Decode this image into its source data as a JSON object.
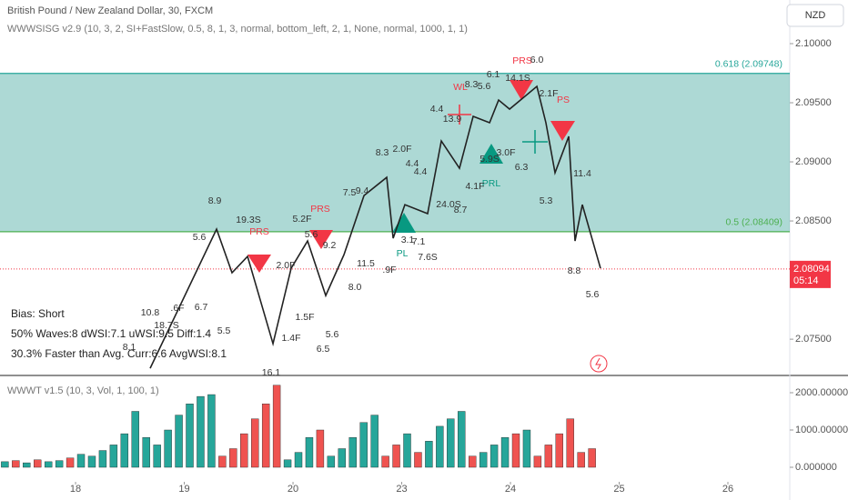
{
  "header": {
    "title": "British Pound / New Zealand Dollar, 30, FXCM",
    "indicator": "WWWSISG v2.9 (10, 3, 2, SI+FastSlow, 0.5, 8, 1, 3, normal, bottom_left, 2, 1, None, normal, 1000, 1, 1)",
    "currency": "NZD"
  },
  "chart_data": [
    {
      "type": "line",
      "xlim": [
        -0.695,
        6.569
      ],
      "ylim": [
        2.07201,
        2.10369
      ],
      "xticks": [
        {
          "value": 0,
          "label": "18"
        },
        {
          "value": 1,
          "label": "19"
        },
        {
          "value": 2,
          "label": "20"
        },
        {
          "value": 3,
          "label": "23"
        },
        {
          "value": 4,
          "label": "24"
        },
        {
          "value": 5,
          "label": "25"
        },
        {
          "value": 6,
          "label": "26"
        }
      ],
      "yticks": [
        {
          "value": 2.1,
          "label": "2.10000"
        },
        {
          "value": 2.095,
          "label": "2.09500"
        },
        {
          "value": 2.09,
          "label": "2.09000"
        },
        {
          "value": 2.085,
          "label": "2.08500"
        },
        {
          "value": 2.075,
          "label": "2.07500"
        }
      ],
      "series": [
        {
          "color": "#222222",
          "x": [
            0.686,
            1.297,
            1.439,
            1.582,
            1.816,
            1.983,
            2.134,
            2.301,
            2.469,
            2.653,
            2.862,
            2.921,
            3.029,
            3.238,
            3.364,
            3.531,
            3.657,
            3.808,
            3.891,
            3.992,
            4.243,
            4.326,
            4.41,
            4.536,
            4.594,
            4.661,
            4.828
          ],
          "values": [
            2.07254,
            2.08431,
            2.08062,
            2.082,
            2.07462,
            2.081,
            2.08331,
            2.07869,
            2.08215,
            2.08715,
            2.08869,
            2.08354,
            2.08638,
            2.08562,
            2.09177,
            2.08946,
            2.09385,
            2.09331,
            2.09523,
            2.09446,
            2.09638,
            2.09331,
            2.08908,
            2.09215,
            2.08331,
            2.08638,
            2.081
          ]
        }
      ],
      "fib": [
        {
          "value": 2.09748,
          "label": "0.618 (2.09748)",
          "color": "#26a69a"
        },
        {
          "value": 2.08409,
          "label": "0.5 (2.08409)",
          "color": "#4caf50"
        }
      ],
      "current_price": 2.08094,
      "countdown": "05:14",
      "annotations": [
        "8.9",
        "5.6",
        "19.3S",
        "PRS",
        "5.2F",
        "PRS",
        "5.6",
        "9.2",
        "7.5",
        "9.4",
        "8.3",
        "2.0F",
        "4.4",
        "4.4",
        "24.0S",
        "8.7",
        "3.1",
        "7.1",
        "7.6S",
        "11.5",
        ".9F",
        "8.0",
        "2.0F",
        "1.5F",
        "5.6",
        "6.5",
        "1.4F",
        "5.5",
        "6.7",
        ".6F",
        "10.8",
        "18.7S",
        "8.1",
        "16.1",
        "PL",
        "PRL",
        "4.1F",
        "5.9S",
        "3.0F",
        "6.3",
        "4.4",
        "13.9",
        "WL",
        "8.3",
        "5.6",
        "6.1",
        "14.1S",
        "PRS",
        "6.0",
        "2.1F",
        "PS",
        "11.4",
        "5.3",
        "8.8",
        "5.6"
      ],
      "bias": [
        "Bias: Short",
        "50% Waves:8 dWSI:7.1 uWSI:9.5 Diff:1.4",
        "30.3% Faster than Avg. Curr:6.6 AvgWSI:8.1"
      ]
    },
    {
      "type": "bar",
      "title": "WWWT v1.5 (10, 3, Vol, 1, 100, 1)",
      "ylim": [
        -146,
        2341
      ],
      "yticks": [
        {
          "value": 2000,
          "label": "2000.000000"
        },
        {
          "value": 1000,
          "label": "1000.000000"
        },
        {
          "value": 0,
          "label": "0.000000"
        }
      ],
      "series": [
        {
          "color": "#26a69a",
          "x": [
            -0.65,
            -0.45,
            -0.25,
            -0.15,
            0.05,
            0.15,
            0.25,
            0.35,
            0.45,
            0.55,
            0.65,
            0.75,
            0.85,
            0.95,
            1.05,
            1.15,
            1.25,
            1.95,
            2.05,
            2.15,
            2.35,
            2.45,
            2.55,
            2.65,
            2.75,
            3.05,
            3.25,
            3.35,
            3.45,
            3.55,
            3.75,
            3.85,
            3.95,
            4.15
          ],
          "values": [
            150,
            120,
            150,
            180,
            350,
            300,
            450,
            600,
            900,
            1500,
            800,
            600,
            1000,
            1400,
            1700,
            1900,
            1950,
            200,
            400,
            800,
            300,
            500,
            800,
            1200,
            1400,
            900,
            700,
            1100,
            1300,
            1500,
            400,
            600,
            800,
            1000
          ]
        },
        {
          "color": "#ef5350",
          "x": [
            -0.55,
            -0.35,
            -0.05,
            1.35,
            1.45,
            1.55,
            1.65,
            1.75,
            1.85,
            2.25,
            2.85,
            2.95,
            3.15,
            3.65,
            4.05,
            4.25,
            4.35,
            4.45,
            4.55,
            4.65,
            4.75
          ],
          "values": [
            180,
            200,
            250,
            300,
            500,
            900,
            1300,
            1700,
            2200,
            1000,
            300,
            600,
            400,
            300,
            900,
            300,
            600,
            900,
            1300,
            400,
            500
          ]
        }
      ]
    }
  ]
}
